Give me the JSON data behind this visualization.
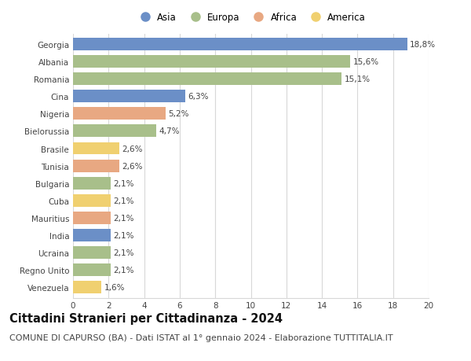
{
  "categories": [
    "Georgia",
    "Albania",
    "Romania",
    "Cina",
    "Nigeria",
    "Bielorussia",
    "Brasile",
    "Tunisia",
    "Bulgaria",
    "Cuba",
    "Mauritius",
    "India",
    "Ucraina",
    "Regno Unito",
    "Venezuela"
  ],
  "values": [
    18.8,
    15.6,
    15.1,
    6.3,
    5.2,
    4.7,
    2.6,
    2.6,
    2.1,
    2.1,
    2.1,
    2.1,
    2.1,
    2.1,
    1.6
  ],
  "labels": [
    "18,8%",
    "15,6%",
    "15,1%",
    "6,3%",
    "5,2%",
    "4,7%",
    "2,6%",
    "2,6%",
    "2,1%",
    "2,1%",
    "2,1%",
    "2,1%",
    "2,1%",
    "2,1%",
    "1,6%"
  ],
  "continents": [
    "Asia",
    "Europa",
    "Europa",
    "Asia",
    "Africa",
    "Europa",
    "America",
    "Africa",
    "Europa",
    "America",
    "Africa",
    "Asia",
    "Europa",
    "Europa",
    "America"
  ],
  "colors": {
    "Asia": "#6b8fc7",
    "Europa": "#a8bf8a",
    "Africa": "#e8a882",
    "America": "#f0d070"
  },
  "legend_order": [
    "Asia",
    "Europa",
    "Africa",
    "America"
  ],
  "title": "Cittadini Stranieri per Cittadinanza - 2024",
  "subtitle": "COMUNE DI CAPURSO (BA) - Dati ISTAT al 1° gennaio 2024 - Elaborazione TUTTITALIA.IT",
  "xlim": [
    0,
    20
  ],
  "xticks": [
    0,
    2,
    4,
    6,
    8,
    10,
    12,
    14,
    16,
    18,
    20
  ],
  "background_color": "#ffffff",
  "grid_color": "#d8d8d8",
  "bar_height": 0.72,
  "title_fontsize": 10.5,
  "subtitle_fontsize": 8,
  "label_fontsize": 7.5,
  "tick_fontsize": 7.5,
  "legend_fontsize": 8.5
}
